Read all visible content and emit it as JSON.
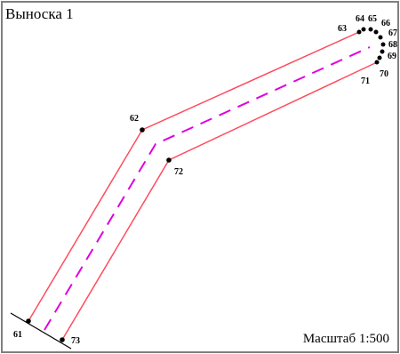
{
  "title": "Выноска 1",
  "scale_label": "Масштаб 1:500",
  "colors": {
    "boundary": "#ff4d5e",
    "axis": "#e000e0",
    "frame": "#7f7f7f",
    "points": "#000000"
  },
  "points": {
    "p61": "61",
    "p62": "62",
    "p63": "63",
    "p64": "64",
    "p65": "65",
    "p66": "66",
    "p67": "67",
    "p68": "68",
    "p69": "69",
    "p70": "70",
    "p71": "71",
    "p72": "72",
    "p73": "73"
  }
}
